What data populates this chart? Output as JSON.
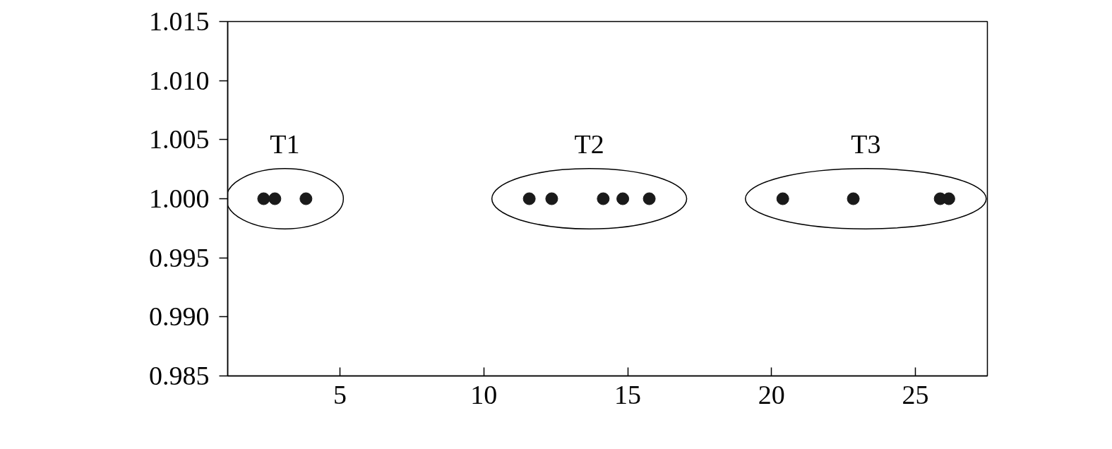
{
  "chart_data": {
    "type": "scatter",
    "x": [
      2.35,
      2.74,
      3.82,
      11.58,
      12.36,
      14.15,
      14.83,
      15.75,
      20.39,
      22.84,
      25.86,
      26.16
    ],
    "values": [
      1.0,
      1.0,
      1.0,
      1.0,
      1.0,
      1.0,
      1.0,
      1.0,
      1.0,
      1.0,
      1.0,
      1.0
    ],
    "color": "#1a1a1a",
    "marker": "circle",
    "xlim": [
      1.1,
      27.5
    ],
    "xticks": [
      5,
      10,
      15,
      20,
      25
    ],
    "ylim": [
      0.985,
      1.015
    ],
    "yticks": [
      {
        "value": 0.985,
        "label": "0.985"
      },
      {
        "value": 0.99,
        "label": "0.990"
      },
      {
        "value": 0.995,
        "label": "0.995"
      },
      {
        "value": 1.0,
        "label": "1.000"
      },
      {
        "value": 1.005,
        "label": "1.005"
      },
      {
        "value": 1.01,
        "label": "1.010"
      },
      {
        "value": 1.015,
        "label": "1.015"
      }
    ],
    "grid": false,
    "annotations": [
      "T1",
      "T2",
      "T3"
    ]
  }
}
